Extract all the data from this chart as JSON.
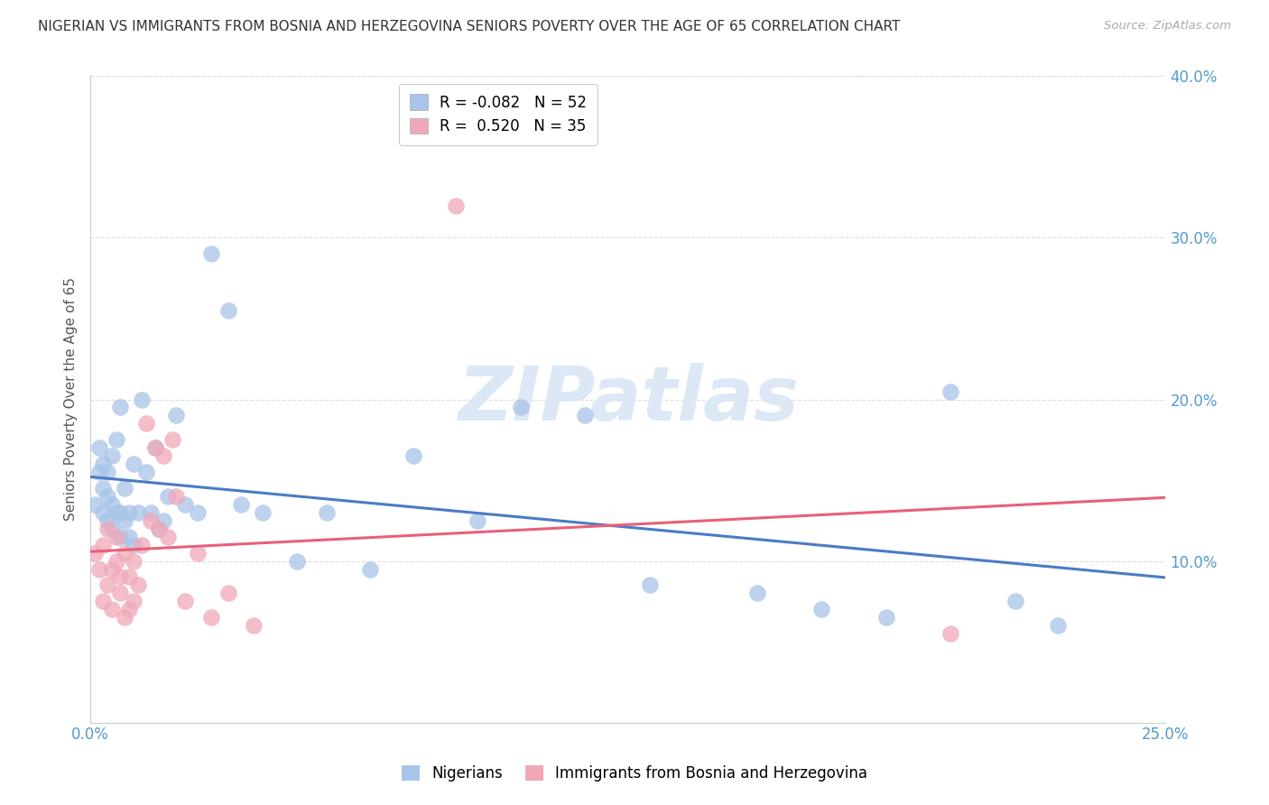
{
  "title": "NIGERIAN VS IMMIGRANTS FROM BOSNIA AND HERZEGOVINA SENIORS POVERTY OVER THE AGE OF 65 CORRELATION CHART",
  "source": "Source: ZipAtlas.com",
  "ylabel": "Seniors Poverty Over the Age of 65",
  "xlim": [
    0.0,
    0.25
  ],
  "ylim": [
    0.0,
    0.4
  ],
  "yticks": [
    0.1,
    0.2,
    0.3,
    0.4
  ],
  "xticks": [
    0.0,
    0.05,
    0.1,
    0.15,
    0.2,
    0.25
  ],
  "xtick_labels": [
    "0.0%",
    "",
    "",
    "",
    "",
    "25.0%"
  ],
  "ytick_labels": [
    "10.0%",
    "20.0%",
    "30.0%",
    "40.0%"
  ],
  "legend_series": [
    "Nigerians",
    "Immigrants from Bosnia and Herzegovina"
  ],
  "blue_color": "#a8c4e8",
  "pink_color": "#f0a8b8",
  "blue_line_color": "#4a7cc4",
  "pink_line_color": "#e8607a",
  "watermark": "ZIPatlas",
  "nigerian_x": [
    0.001,
    0.002,
    0.002,
    0.003,
    0.003,
    0.003,
    0.004,
    0.004,
    0.004,
    0.005,
    0.005,
    0.005,
    0.006,
    0.006,
    0.007,
    0.007,
    0.007,
    0.008,
    0.008,
    0.009,
    0.009,
    0.01,
    0.01,
    0.011,
    0.012,
    0.013,
    0.014,
    0.015,
    0.016,
    0.017,
    0.018,
    0.02,
    0.022,
    0.025,
    0.028,
    0.032,
    0.035,
    0.04,
    0.048,
    0.055,
    0.065,
    0.075,
    0.09,
    0.1,
    0.115,
    0.13,
    0.155,
    0.17,
    0.185,
    0.2,
    0.215,
    0.225
  ],
  "nigerian_y": [
    0.135,
    0.155,
    0.17,
    0.13,
    0.145,
    0.16,
    0.125,
    0.14,
    0.155,
    0.12,
    0.135,
    0.165,
    0.13,
    0.175,
    0.115,
    0.13,
    0.195,
    0.125,
    0.145,
    0.115,
    0.13,
    0.11,
    0.16,
    0.13,
    0.2,
    0.155,
    0.13,
    0.17,
    0.12,
    0.125,
    0.14,
    0.19,
    0.135,
    0.13,
    0.29,
    0.255,
    0.135,
    0.13,
    0.1,
    0.13,
    0.095,
    0.165,
    0.125,
    0.195,
    0.19,
    0.085,
    0.08,
    0.07,
    0.065,
    0.205,
    0.075,
    0.06
  ],
  "bosnia_x": [
    0.001,
    0.002,
    0.003,
    0.003,
    0.004,
    0.004,
    0.005,
    0.005,
    0.006,
    0.006,
    0.007,
    0.007,
    0.008,
    0.008,
    0.009,
    0.009,
    0.01,
    0.01,
    0.011,
    0.012,
    0.013,
    0.014,
    0.015,
    0.016,
    0.017,
    0.018,
    0.019,
    0.02,
    0.022,
    0.025,
    0.028,
    0.032,
    0.038,
    0.085,
    0.2
  ],
  "bosnia_y": [
    0.105,
    0.095,
    0.075,
    0.11,
    0.085,
    0.12,
    0.07,
    0.095,
    0.1,
    0.115,
    0.08,
    0.09,
    0.065,
    0.105,
    0.07,
    0.09,
    0.075,
    0.1,
    0.085,
    0.11,
    0.185,
    0.125,
    0.17,
    0.12,
    0.165,
    0.115,
    0.175,
    0.14,
    0.075,
    0.105,
    0.065,
    0.08,
    0.06,
    0.32,
    0.055
  ],
  "blue_R": -0.082,
  "blue_N": 52,
  "pink_R": 0.52,
  "pink_N": 35
}
